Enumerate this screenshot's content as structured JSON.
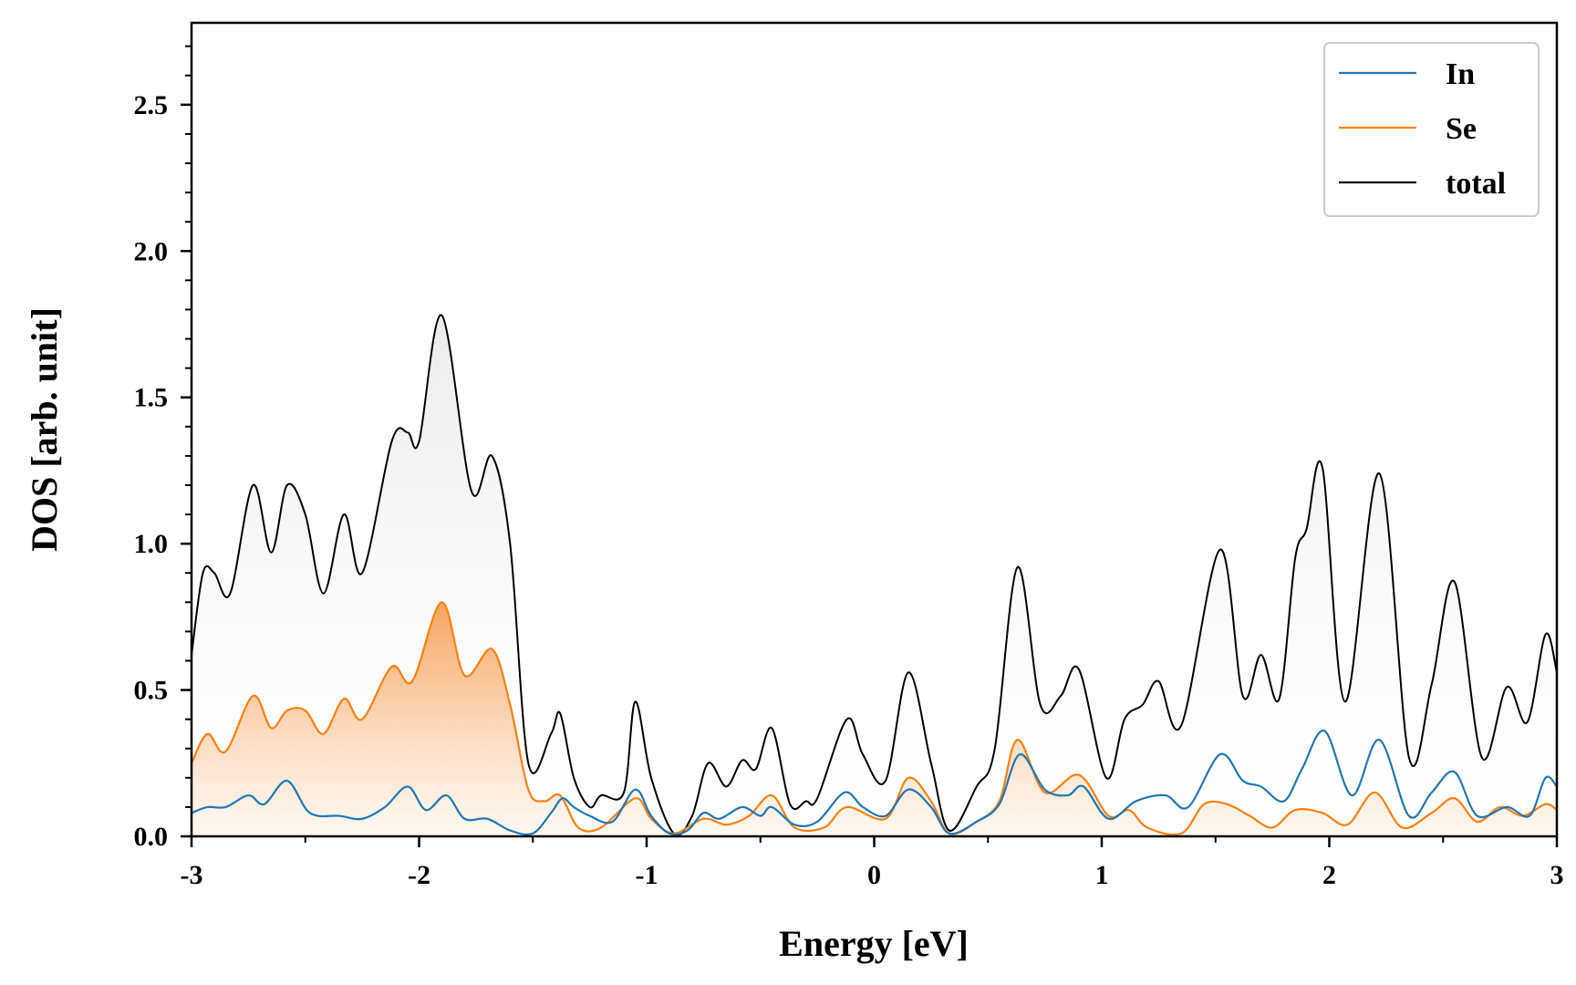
{
  "chart_data": {
    "type": "line",
    "xlabel": "Energy [eV]",
    "ylabel": "DOS [arb. unit]",
    "xlim": [
      -3,
      3
    ],
    "ylim": [
      0,
      2.78
    ],
    "x_ticks": [
      -3,
      -2,
      -1,
      0,
      1,
      2,
      3
    ],
    "x_tick_labels": [
      "-3",
      "-2",
      "-1",
      "0",
      "1",
      "2",
      "3"
    ],
    "y_ticks": [
      0,
      0.5,
      1.0,
      1.5,
      2.0,
      2.5
    ],
    "y_tick_labels": [
      "0.0",
      "0.5",
      "1.0",
      "1.5",
      "2.0",
      "2.5"
    ],
    "grid": false,
    "legend_position": "top-right",
    "fill_under_curves": true,
    "series": [
      {
        "name": "In",
        "color": "#1f77b4",
        "filled": false,
        "points": [
          [
            -3.0,
            0.08
          ],
          [
            -2.93,
            0.1
          ],
          [
            -2.85,
            0.1
          ],
          [
            -2.75,
            0.14
          ],
          [
            -2.68,
            0.11
          ],
          [
            -2.58,
            0.19
          ],
          [
            -2.48,
            0.08
          ],
          [
            -2.35,
            0.07
          ],
          [
            -2.25,
            0.06
          ],
          [
            -2.15,
            0.1
          ],
          [
            -2.05,
            0.17
          ],
          [
            -1.97,
            0.09
          ],
          [
            -1.88,
            0.14
          ],
          [
            -1.8,
            0.06
          ],
          [
            -1.7,
            0.06
          ],
          [
            -1.6,
            0.02
          ],
          [
            -1.5,
            0.01
          ],
          [
            -1.42,
            0.08
          ],
          [
            -1.37,
            0.13
          ],
          [
            -1.32,
            0.1
          ],
          [
            -1.25,
            0.07
          ],
          [
            -1.15,
            0.05
          ],
          [
            -1.05,
            0.16
          ],
          [
            -0.98,
            0.07
          ],
          [
            -0.9,
            0.01
          ],
          [
            -0.82,
            0.02
          ],
          [
            -0.75,
            0.08
          ],
          [
            -0.68,
            0.06
          ],
          [
            -0.58,
            0.1
          ],
          [
            -0.5,
            0.07
          ],
          [
            -0.45,
            0.1
          ],
          [
            -0.35,
            0.04
          ],
          [
            -0.25,
            0.05
          ],
          [
            -0.13,
            0.15
          ],
          [
            -0.05,
            0.1
          ],
          [
            0.05,
            0.07
          ],
          [
            0.15,
            0.16
          ],
          [
            0.25,
            0.1
          ],
          [
            0.33,
            0.01
          ],
          [
            0.45,
            0.05
          ],
          [
            0.55,
            0.11
          ],
          [
            0.64,
            0.28
          ],
          [
            0.75,
            0.16
          ],
          [
            0.85,
            0.14
          ],
          [
            0.92,
            0.17
          ],
          [
            1.03,
            0.06
          ],
          [
            1.15,
            0.12
          ],
          [
            1.28,
            0.14
          ],
          [
            1.38,
            0.1
          ],
          [
            1.52,
            0.28
          ],
          [
            1.62,
            0.19
          ],
          [
            1.7,
            0.17
          ],
          [
            1.8,
            0.12
          ],
          [
            1.88,
            0.23
          ],
          [
            1.98,
            0.36
          ],
          [
            2.1,
            0.14
          ],
          [
            2.22,
            0.33
          ],
          [
            2.35,
            0.07
          ],
          [
            2.45,
            0.15
          ],
          [
            2.55,
            0.22
          ],
          [
            2.65,
            0.07
          ],
          [
            2.78,
            0.1
          ],
          [
            2.88,
            0.07
          ],
          [
            2.95,
            0.2
          ],
          [
            3.0,
            0.17
          ]
        ]
      },
      {
        "name": "Se",
        "color": "#ff7f0e",
        "filled": true,
        "points": [
          [
            -3.0,
            0.25
          ],
          [
            -2.93,
            0.35
          ],
          [
            -2.85,
            0.29
          ],
          [
            -2.73,
            0.48
          ],
          [
            -2.65,
            0.37
          ],
          [
            -2.58,
            0.43
          ],
          [
            -2.5,
            0.43
          ],
          [
            -2.42,
            0.35
          ],
          [
            -2.33,
            0.47
          ],
          [
            -2.25,
            0.4
          ],
          [
            -2.12,
            0.58
          ],
          [
            -2.03,
            0.53
          ],
          [
            -1.9,
            0.8
          ],
          [
            -1.8,
            0.55
          ],
          [
            -1.68,
            0.64
          ],
          [
            -1.6,
            0.45
          ],
          [
            -1.52,
            0.16
          ],
          [
            -1.45,
            0.12
          ],
          [
            -1.38,
            0.14
          ],
          [
            -1.3,
            0.03
          ],
          [
            -1.2,
            0.03
          ],
          [
            -1.05,
            0.13
          ],
          [
            -0.98,
            0.06
          ],
          [
            -0.88,
            0.01
          ],
          [
            -0.75,
            0.06
          ],
          [
            -0.65,
            0.04
          ],
          [
            -0.55,
            0.07
          ],
          [
            -0.45,
            0.14
          ],
          [
            -0.35,
            0.03
          ],
          [
            -0.22,
            0.03
          ],
          [
            -0.12,
            0.1
          ],
          [
            0.05,
            0.06
          ],
          [
            0.15,
            0.2
          ],
          [
            0.25,
            0.12
          ],
          [
            0.33,
            0.01
          ],
          [
            0.45,
            0.05
          ],
          [
            0.55,
            0.12
          ],
          [
            0.63,
            0.33
          ],
          [
            0.75,
            0.15
          ],
          [
            0.9,
            0.21
          ],
          [
            1.03,
            0.07
          ],
          [
            1.12,
            0.09
          ],
          [
            1.2,
            0.03
          ],
          [
            1.35,
            0.01
          ],
          [
            1.45,
            0.11
          ],
          [
            1.55,
            0.11
          ],
          [
            1.65,
            0.07
          ],
          [
            1.75,
            0.03
          ],
          [
            1.85,
            0.09
          ],
          [
            1.97,
            0.08
          ],
          [
            2.08,
            0.04
          ],
          [
            2.2,
            0.15
          ],
          [
            2.32,
            0.03
          ],
          [
            2.45,
            0.08
          ],
          [
            2.55,
            0.13
          ],
          [
            2.65,
            0.05
          ],
          [
            2.75,
            0.1
          ],
          [
            2.85,
            0.07
          ],
          [
            2.95,
            0.11
          ],
          [
            3.0,
            0.09
          ]
        ]
      },
      {
        "name": "total",
        "color": "#000000",
        "filled": true,
        "points": [
          [
            -3.0,
            0.62
          ],
          [
            -2.95,
            0.9
          ],
          [
            -2.9,
            0.9
          ],
          [
            -2.83,
            0.83
          ],
          [
            -2.73,
            1.2
          ],
          [
            -2.65,
            0.97
          ],
          [
            -2.58,
            1.2
          ],
          [
            -2.5,
            1.1
          ],
          [
            -2.42,
            0.83
          ],
          [
            -2.33,
            1.1
          ],
          [
            -2.25,
            0.9
          ],
          [
            -2.12,
            1.35
          ],
          [
            -2.05,
            1.38
          ],
          [
            -2.0,
            1.35
          ],
          [
            -1.9,
            1.78
          ],
          [
            -1.77,
            1.18
          ],
          [
            -1.68,
            1.3
          ],
          [
            -1.6,
            1.0
          ],
          [
            -1.52,
            0.25
          ],
          [
            -1.42,
            0.35
          ],
          [
            -1.38,
            0.42
          ],
          [
            -1.32,
            0.2
          ],
          [
            -1.25,
            0.1
          ],
          [
            -1.2,
            0.14
          ],
          [
            -1.1,
            0.15
          ],
          [
            -1.05,
            0.46
          ],
          [
            -0.98,
            0.2
          ],
          [
            -0.88,
            0.01
          ],
          [
            -0.8,
            0.07
          ],
          [
            -0.73,
            0.25
          ],
          [
            -0.65,
            0.17
          ],
          [
            -0.58,
            0.26
          ],
          [
            -0.52,
            0.23
          ],
          [
            -0.45,
            0.37
          ],
          [
            -0.37,
            0.11
          ],
          [
            -0.3,
            0.12
          ],
          [
            -0.25,
            0.13
          ],
          [
            -0.12,
            0.4
          ],
          [
            -0.05,
            0.28
          ],
          [
            0.05,
            0.19
          ],
          [
            0.15,
            0.56
          ],
          [
            0.25,
            0.25
          ],
          [
            0.33,
            0.02
          ],
          [
            0.45,
            0.17
          ],
          [
            0.53,
            0.3
          ],
          [
            0.63,
            0.92
          ],
          [
            0.73,
            0.45
          ],
          [
            0.82,
            0.48
          ],
          [
            0.9,
            0.57
          ],
          [
            1.02,
            0.2
          ],
          [
            1.1,
            0.4
          ],
          [
            1.18,
            0.45
          ],
          [
            1.25,
            0.53
          ],
          [
            1.35,
            0.38
          ],
          [
            1.52,
            0.98
          ],
          [
            1.62,
            0.48
          ],
          [
            1.7,
            0.62
          ],
          [
            1.78,
            0.47
          ],
          [
            1.85,
            0.95
          ],
          [
            1.9,
            1.05
          ],
          [
            1.97,
            1.26
          ],
          [
            2.07,
            0.46
          ],
          [
            2.22,
            1.24
          ],
          [
            2.35,
            0.27
          ],
          [
            2.45,
            0.52
          ],
          [
            2.55,
            0.87
          ],
          [
            2.67,
            0.27
          ],
          [
            2.78,
            0.51
          ],
          [
            2.87,
            0.39
          ],
          [
            2.95,
            0.69
          ],
          [
            3.0,
            0.56
          ]
        ]
      }
    ]
  }
}
